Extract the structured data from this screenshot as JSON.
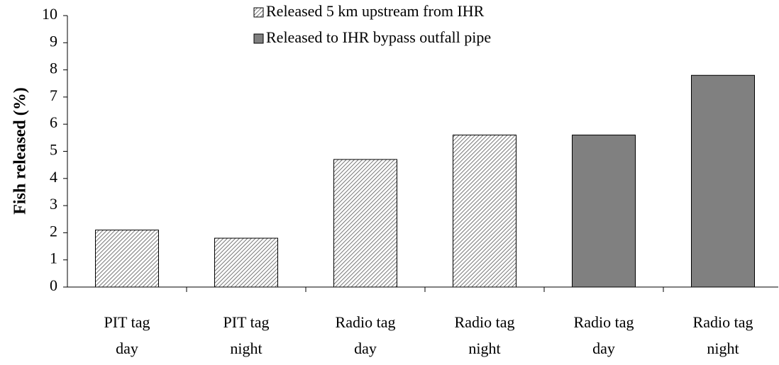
{
  "chart_data": {
    "type": "bar",
    "y_label": "Fish released (%)",
    "categories": [
      [
        "PIT tag",
        "day"
      ],
      [
        "PIT tag",
        "night"
      ],
      [
        "Radio tag",
        "day"
      ],
      [
        "Radio tag",
        "night"
      ],
      [
        "Radio tag",
        "day"
      ],
      [
        "Radio tag",
        "night"
      ]
    ],
    "series": [
      {
        "name": "Released 5 km upstream from IHR",
        "color": "#555555",
        "pattern": "hatched",
        "values": [
          2.1,
          1.8,
          4.7,
          5.6,
          null,
          null
        ]
      },
      {
        "name": "Released to IHR bypass outfall pipe",
        "color": "#808080",
        "pattern": "solid",
        "values": [
          null,
          null,
          null,
          null,
          5.6,
          7.8
        ]
      }
    ],
    "ylim": [
      0,
      10
    ],
    "yticks": [
      0,
      1,
      2,
      3,
      4,
      5,
      6,
      7,
      8,
      9,
      10
    ],
    "grid": false
  }
}
